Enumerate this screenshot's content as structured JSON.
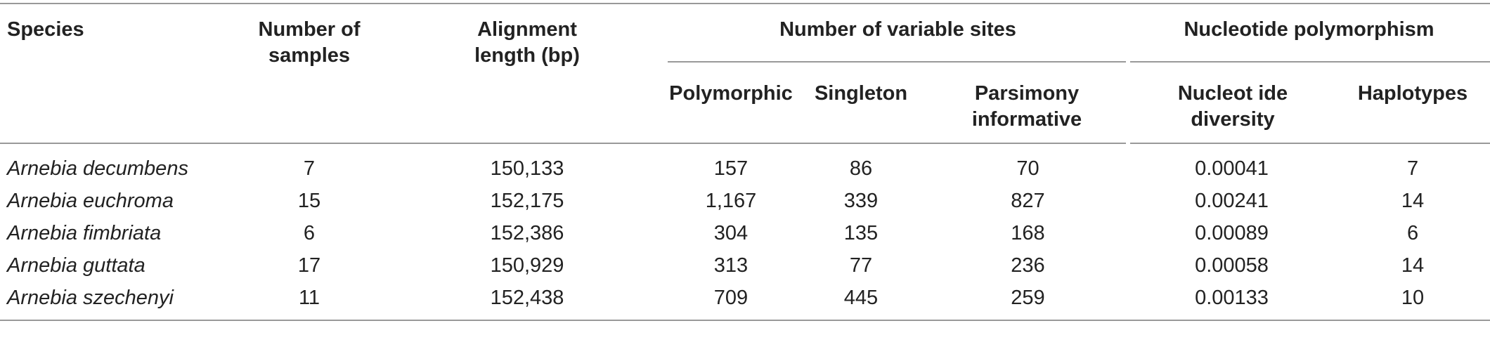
{
  "table": {
    "headers": {
      "species": "Species",
      "number_of_samples": "Number of samples",
      "alignment_length": "Alignment length (bp)",
      "variable_sites_group": "Number of variable sites",
      "nucleotide_polymorphism_group": "Nucleotide polymorphism",
      "polymorphic": "Polymorphic",
      "singleton": "Singleton",
      "parsimony_informative": "Parsimony informative",
      "nucleotide_diversity": "Nucleot ide diversity",
      "haplotypes": "Haplotypes"
    },
    "rows": [
      {
        "species": "Arnebia decumbens",
        "samples": "7",
        "length": "150,133",
        "polymorphic": "157",
        "singleton": "86",
        "parsimony": "70",
        "diversity": "0.00041",
        "haplotypes": "7"
      },
      {
        "species": "Arnebia euchroma",
        "samples": "15",
        "length": "152,175",
        "polymorphic": "1,167",
        "singleton": "339",
        "parsimony": "827",
        "diversity": "0.00241",
        "haplotypes": "14"
      },
      {
        "species": "Arnebia fimbriata",
        "samples": "6",
        "length": "152,386",
        "polymorphic": "304",
        "singleton": "135",
        "parsimony": "168",
        "diversity": "0.00089",
        "haplotypes": "6"
      },
      {
        "species": "Arnebia guttata",
        "samples": "17",
        "length": "150,929",
        "polymorphic": "313",
        "singleton": "77",
        "parsimony": "236",
        "diversity": "0.00058",
        "haplotypes": "14"
      },
      {
        "species": "Arnebia szechenyi",
        "samples": "11",
        "length": "152,438",
        "polymorphic": "709",
        "singleton": "445",
        "parsimony": "259",
        "diversity": "0.00133",
        "haplotypes": "10"
      }
    ]
  }
}
